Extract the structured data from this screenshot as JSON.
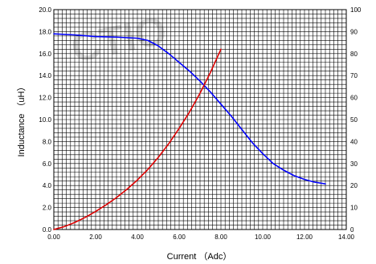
{
  "chart_data": {
    "type": "line",
    "watermark": "CTIO",
    "xlabel": "Current （Adc）",
    "ylabel": "Inductance （uH）",
    "xlim": [
      0,
      14
    ],
    "ylim_left": [
      0,
      20
    ],
    "ylim_right": [
      0,
      100
    ],
    "x_ticks": [
      "0.00",
      "2.00",
      "4.00",
      "6.00",
      "8.00",
      "10.00",
      "12.00",
      "14.00"
    ],
    "y_left_ticks": [
      "0.0",
      "2.0",
      "4.0",
      "6.0",
      "8.0",
      "10.0",
      "12.0",
      "14.0",
      "16.0",
      "18.0",
      "20.0"
    ],
    "y_right_ticks": [
      "0",
      "10",
      "20",
      "30",
      "40",
      "50",
      "60",
      "70",
      "80",
      "90",
      "100"
    ],
    "grid": true,
    "colors": {
      "inductance": "#0000ff",
      "temperature": "#dd0000",
      "grid": "#000000"
    },
    "series": [
      {
        "axis": "left",
        "color": "#0000ff",
        "x": [
          0,
          1,
          2,
          3,
          4,
          4.5,
          5,
          5.5,
          6,
          6.5,
          7,
          7.5,
          8,
          8.5,
          9,
          9.5,
          10,
          10.5,
          11,
          11.5,
          12,
          12.5,
          13
        ],
        "y": [
          17.8,
          17.7,
          17.55,
          17.5,
          17.4,
          17.2,
          16.7,
          16.0,
          15.2,
          14.4,
          13.5,
          12.5,
          11.4,
          10.3,
          9.1,
          7.9,
          6.9,
          6.0,
          5.4,
          4.9,
          4.55,
          4.3,
          4.15
        ]
      },
      {
        "axis": "right",
        "color": "#dd0000",
        "x": [
          0,
          0.5,
          1,
          1.5,
          2,
          2.5,
          3,
          3.5,
          4,
          4.5,
          5,
          5.5,
          6,
          6.5,
          7,
          7.5,
          8
        ],
        "y": [
          0,
          1.3,
          3.2,
          5.5,
          8.2,
          11.2,
          14.5,
          18.3,
          22.5,
          27.3,
          32.8,
          39,
          46,
          53.5,
          62,
          71.5,
          82
        ]
      }
    ]
  }
}
